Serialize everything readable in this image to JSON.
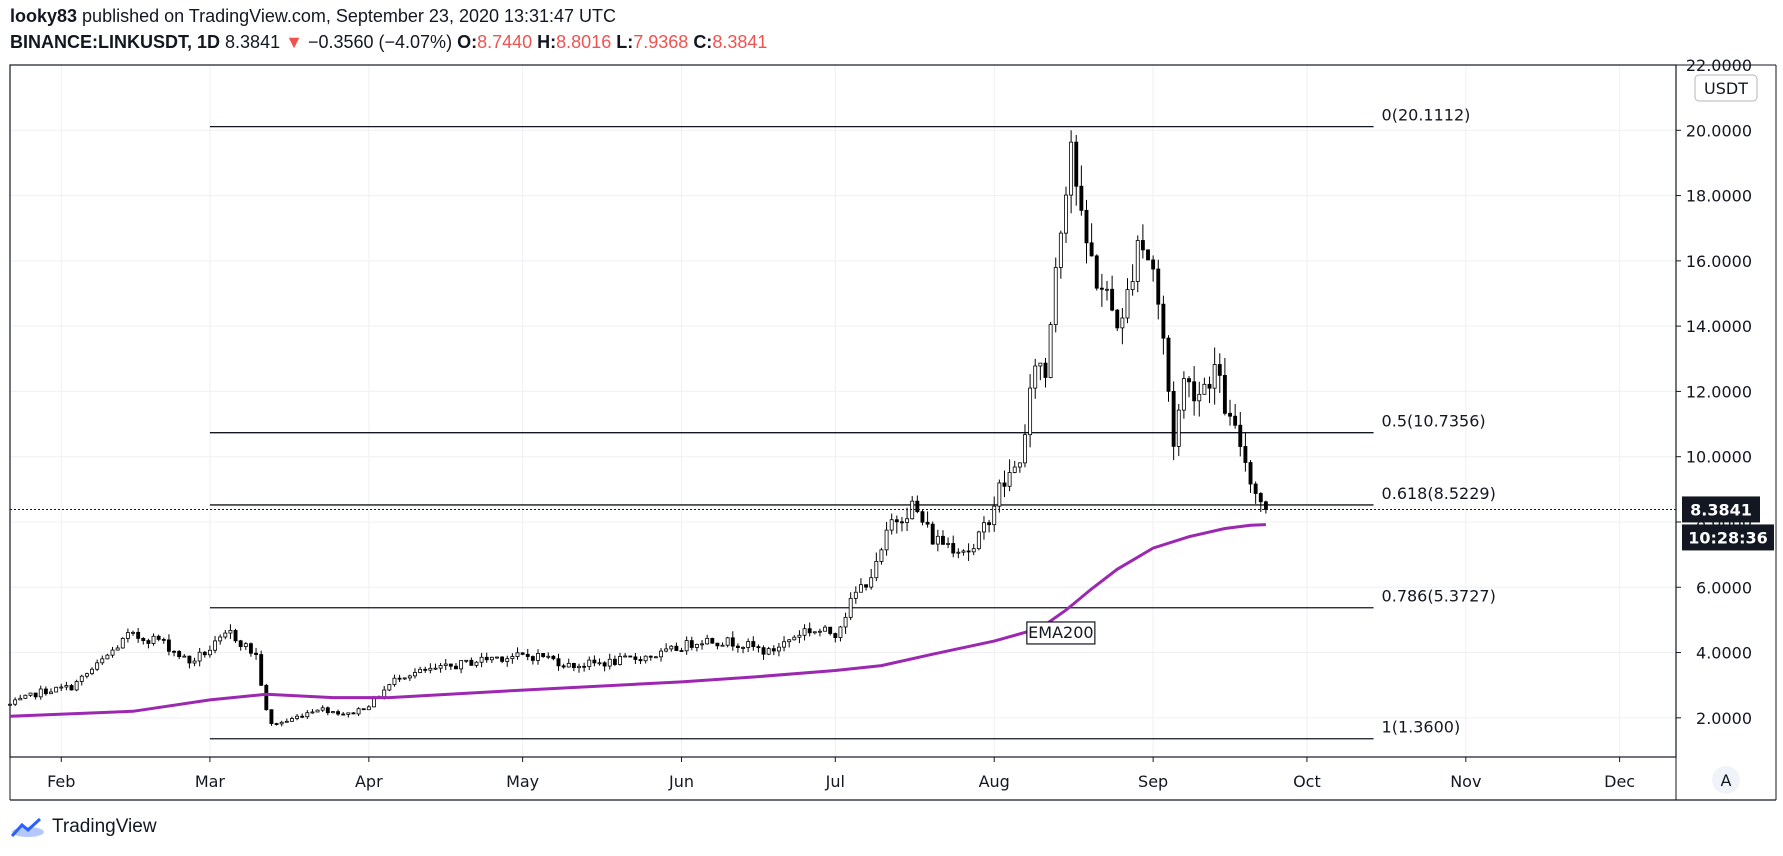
{
  "header": {
    "author": "looky83",
    "published_text": " published on TradingView.com, September 23, 2020 13:31:47 UTC",
    "symbol": "BINANCE:LINKUSDT, 1D",
    "last": "8.3841",
    "change": "−0.3560 (−4.07%)",
    "o_label": "O:",
    "o_value": "8.7440",
    "h_label": "H:",
    "h_value": "8.8016",
    "l_label": "L:",
    "l_value": "7.9368",
    "c_label": "C:",
    "c_value": "8.3841"
  },
  "footer": {
    "brand": "TradingView"
  },
  "colors": {
    "candle": "#000000",
    "ema": "#9c27b0",
    "fib": "#131722",
    "grid": "#eef0f3",
    "down": "#ef5350"
  },
  "chart_data": {
    "type": "candlestick",
    "currency_label": "USDT",
    "ylim": [
      0.8,
      22.0
    ],
    "x_start": "2020-01-22",
    "x_end": "2020-12-12",
    "y_ticks": [
      "22.0000",
      "20.0000",
      "18.0000",
      "16.0000",
      "14.0000",
      "12.0000",
      "10.0000",
      "8.0000",
      "6.0000",
      "4.0000",
      "2.0000"
    ],
    "x_ticks": [
      {
        "date": "2020-02-01",
        "label": "Feb"
      },
      {
        "date": "2020-03-01",
        "label": "Mar"
      },
      {
        "date": "2020-04-01",
        "label": "Apr"
      },
      {
        "date": "2020-05-01",
        "label": "May"
      },
      {
        "date": "2020-06-01",
        "label": "Jun"
      },
      {
        "date": "2020-07-01",
        "label": "Jul"
      },
      {
        "date": "2020-08-01",
        "label": "Aug"
      },
      {
        "date": "2020-09-01",
        "label": "Sep"
      },
      {
        "date": "2020-10-01",
        "label": "Oct"
      },
      {
        "date": "2020-11-01",
        "label": "Nov"
      },
      {
        "date": "2020-12-01",
        "label": "Dec"
      }
    ],
    "last_price_label": "8.3841",
    "countdown_label": "10:28:36",
    "auto_button": "A",
    "ema_label": "EMA200",
    "ema_label_date": "2020-08-14",
    "ema_label_value": 4.6,
    "fib_start": "2020-03-01",
    "fib_end": "2020-10-14",
    "fib_levels": [
      {
        "value": 20.1112,
        "label": "0(20.1112)"
      },
      {
        "value": 10.7356,
        "label": "0.5(10.7356)"
      },
      {
        "value": 8.5229,
        "label": "0.618(8.5229)"
      },
      {
        "value": 5.3727,
        "label": "0.786(5.3727)"
      },
      {
        "value": 1.36,
        "label": "1(1.3600)"
      }
    ],
    "ema200": [
      [
        "2020-01-22",
        2.05
      ],
      [
        "2020-02-15",
        2.2
      ],
      [
        "2020-03-01",
        2.55
      ],
      [
        "2020-03-12",
        2.72
      ],
      [
        "2020-03-25",
        2.62
      ],
      [
        "2020-04-05",
        2.62
      ],
      [
        "2020-05-01",
        2.85
      ],
      [
        "2020-06-01",
        3.1
      ],
      [
        "2020-06-15",
        3.25
      ],
      [
        "2020-07-01",
        3.45
      ],
      [
        "2020-07-10",
        3.6
      ],
      [
        "2020-07-20",
        3.95
      ],
      [
        "2020-08-01",
        4.35
      ],
      [
        "2020-08-10",
        4.75
      ],
      [
        "2020-08-15",
        5.3
      ],
      [
        "2020-08-20",
        5.95
      ],
      [
        "2020-08-25",
        6.55
      ],
      [
        "2020-09-01",
        7.2
      ],
      [
        "2020-09-08",
        7.55
      ],
      [
        "2020-09-15",
        7.8
      ],
      [
        "2020-09-20",
        7.9
      ],
      [
        "2020-09-23",
        7.92
      ]
    ],
    "close_path": [
      [
        "2020-01-22",
        2.4
      ],
      [
        "2020-01-28",
        2.8
      ],
      [
        "2020-02-03",
        2.95
      ],
      [
        "2020-02-08",
        3.6
      ],
      [
        "2020-02-14",
        4.5
      ],
      [
        "2020-02-20",
        4.4
      ],
      [
        "2020-02-26",
        3.7
      ],
      [
        "2020-03-01",
        4.1
      ],
      [
        "2020-03-05",
        4.6
      ],
      [
        "2020-03-10",
        3.9
      ],
      [
        "2020-03-12",
        2.2
      ],
      [
        "2020-03-13",
        1.8
      ],
      [
        "2020-03-16",
        1.9
      ],
      [
        "2020-03-22",
        2.3
      ],
      [
        "2020-03-28",
        2.1
      ],
      [
        "2020-04-01",
        2.4
      ],
      [
        "2020-04-07",
        3.3
      ],
      [
        "2020-04-15",
        3.5
      ],
      [
        "2020-04-25",
        3.85
      ],
      [
        "2020-05-05",
        3.9
      ],
      [
        "2020-05-10",
        3.6
      ],
      [
        "2020-05-18",
        3.7
      ],
      [
        "2020-05-28",
        3.95
      ],
      [
        "2020-06-05",
        4.4
      ],
      [
        "2020-06-12",
        4.3
      ],
      [
        "2020-06-18",
        4.0
      ],
      [
        "2020-06-25",
        4.7
      ],
      [
        "2020-07-01",
        4.6
      ],
      [
        "2020-07-05",
        5.8
      ],
      [
        "2020-07-09",
        6.6
      ],
      [
        "2020-07-12",
        8.0
      ],
      [
        "2020-07-16",
        8.5
      ],
      [
        "2020-07-20",
        7.5
      ],
      [
        "2020-07-24",
        7.3
      ],
      [
        "2020-07-28",
        7.1
      ],
      [
        "2020-07-31",
        8.2
      ],
      [
        "2020-08-02",
        9.0
      ],
      [
        "2020-08-05",
        9.6
      ],
      [
        "2020-08-07",
        10.5
      ],
      [
        "2020-08-09",
        13.0
      ],
      [
        "2020-08-11",
        12.5
      ],
      [
        "2020-08-13",
        16.0
      ],
      [
        "2020-08-15",
        18.5
      ],
      [
        "2020-08-16",
        19.8
      ],
      [
        "2020-08-18",
        17.0
      ],
      [
        "2020-08-21",
        15.5
      ],
      [
        "2020-08-24",
        14.5
      ],
      [
        "2020-08-26",
        14.0
      ],
      [
        "2020-08-29",
        16.8
      ],
      [
        "2020-09-01",
        15.8
      ],
      [
        "2020-09-03",
        13.5
      ],
      [
        "2020-09-05",
        10.5
      ],
      [
        "2020-09-07",
        12.3
      ],
      [
        "2020-09-10",
        12.0
      ],
      [
        "2020-09-13",
        12.7
      ],
      [
        "2020-09-16",
        11.0
      ],
      [
        "2020-09-18",
        10.4
      ],
      [
        "2020-09-21",
        8.9
      ],
      [
        "2020-09-22",
        8.74
      ],
      [
        "2020-09-23",
        8.3841
      ]
    ]
  }
}
